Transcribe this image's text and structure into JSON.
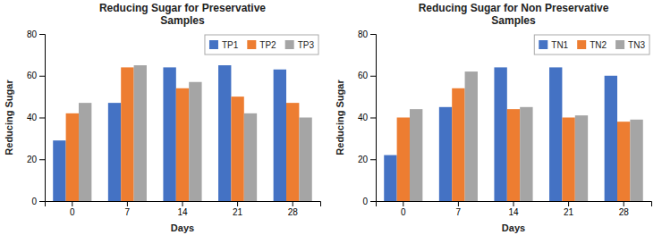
{
  "chart_data": [
    {
      "type": "bar",
      "title": "Reducing Sugar for Preservative\nSamples",
      "xlabel": "Days",
      "ylabel": "Reducing Sugar",
      "categories": [
        "0",
        "7",
        "14",
        "21",
        "28"
      ],
      "series": [
        {
          "name": "TP1",
          "color": "#4472C4",
          "values": [
            29,
            47,
            64,
            65,
            63
          ]
        },
        {
          "name": "TP2",
          "color": "#ED7D31",
          "values": [
            42,
            64,
            54,
            50,
            47
          ]
        },
        {
          "name": "TP3",
          "color": "#A5A5A5",
          "values": [
            47,
            65,
            57,
            42,
            40
          ]
        }
      ],
      "ylim": [
        0,
        80
      ],
      "yticks": [
        0,
        20,
        40,
        60,
        80
      ],
      "grid": false,
      "legend": "upper right"
    },
    {
      "type": "bar",
      "title": "Reducing Sugar for Non Preservative\nSamples",
      "xlabel": "Days",
      "ylabel": "Reducing Sugar",
      "categories": [
        "0",
        "7",
        "14",
        "21",
        "28"
      ],
      "series": [
        {
          "name": "TN1",
          "color": "#4472C4",
          "values": [
            22,
            45,
            64,
            64,
            60
          ]
        },
        {
          "name": "TN2",
          "color": "#ED7D31",
          "values": [
            40,
            54,
            44,
            40,
            38
          ]
        },
        {
          "name": "TN3",
          "color": "#A5A5A5",
          "values": [
            44,
            62,
            45,
            41,
            39
          ]
        }
      ],
      "ylim": [
        0,
        80
      ],
      "yticks": [
        0,
        20,
        40,
        60,
        80
      ],
      "grid": false,
      "legend": "upper right"
    }
  ]
}
